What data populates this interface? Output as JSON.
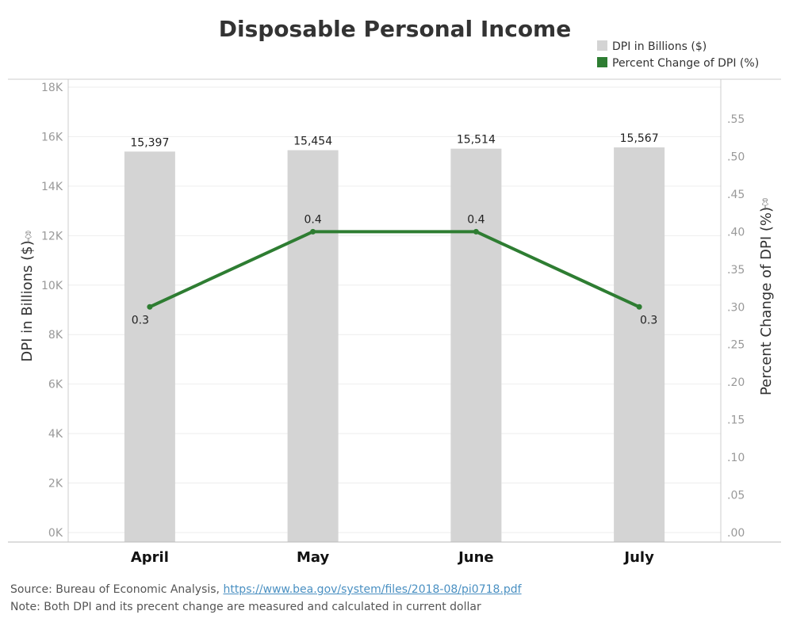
{
  "chart_data": {
    "type": "bar",
    "title": "Disposable Personal Income",
    "categories": [
      "April",
      "May",
      "June",
      "July"
    ],
    "series": [
      {
        "name": "DPI in Billions ($)",
        "type": "bar",
        "axis": "left",
        "color": "#d4d4d4",
        "values": [
          15397,
          15454,
          15514,
          15567
        ],
        "labels": [
          "15,397",
          "15,454",
          "15,514",
          "15,567"
        ]
      },
      {
        "name": "Percent Change of DPI (%)",
        "type": "line",
        "axis": "right",
        "color": "#2e7d32",
        "values": [
          0.3,
          0.4,
          0.4,
          0.3
        ],
        "labels": [
          "0.3",
          "0.4",
          "0.4",
          "0.3"
        ]
      }
    ],
    "ylabel": "DPI in Billions ($)",
    "y2label": "Percent Change of DPI (%)",
    "ylim": [
      0,
      18000
    ],
    "y2lim": [
      0,
      0.6
    ],
    "yticks": [
      {
        "value": 0,
        "label": "0K"
      },
      {
        "value": 2000,
        "label": "2K"
      },
      {
        "value": 4000,
        "label": "4K"
      },
      {
        "value": 6000,
        "label": "6K"
      },
      {
        "value": 8000,
        "label": "8K"
      },
      {
        "value": 10000,
        "label": "10K"
      },
      {
        "value": 12000,
        "label": "12K"
      },
      {
        "value": 14000,
        "label": "14K"
      },
      {
        "value": 16000,
        "label": "16K"
      },
      {
        "value": 18000,
        "label": "18K"
      }
    ],
    "y2ticks": [
      {
        "value": 0.0,
        "label": ".00"
      },
      {
        "value": 0.05,
        "label": ".05"
      },
      {
        "value": 0.1,
        "label": ".10"
      },
      {
        "value": 0.15,
        "label": ".15"
      },
      {
        "value": 0.2,
        "label": ".20"
      },
      {
        "value": 0.25,
        "label": ".25"
      },
      {
        "value": 0.3,
        "label": ".30"
      },
      {
        "value": 0.35,
        "label": ".35"
      },
      {
        "value": 0.4,
        "label": ".40"
      },
      {
        "value": 0.45,
        "label": ".45"
      },
      {
        "value": 0.5,
        "label": ".50"
      },
      {
        "value": 0.55,
        "label": ".55"
      }
    ],
    "legend_position": "top-right",
    "grid": true
  },
  "footer": {
    "source_prefix": "Source: Bureau of Economic Analysis, ",
    "source_link": "https://www.bea.gov/system/files/2018-08/pi0718.pdf",
    "note": "Note: Both DPI and its precent change are measured and calculated in current dollar"
  }
}
